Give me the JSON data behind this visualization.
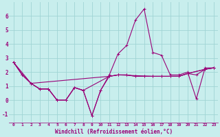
{
  "xlabel": "Windchill (Refroidissement éolien,°C)",
  "background_color": "#c8eeed",
  "grid_color": "#a0d4d4",
  "line_color": "#990077",
  "xlim": [
    -0.5,
    23.5
  ],
  "ylim": [
    -1.6,
    7.0
  ],
  "yticks": [
    -1,
    0,
    1,
    2,
    3,
    4,
    5,
    6
  ],
  "xticks": [
    0,
    1,
    2,
    3,
    4,
    5,
    6,
    7,
    8,
    9,
    10,
    11,
    12,
    13,
    14,
    15,
    16,
    17,
    18,
    19,
    20,
    21,
    22,
    23
  ],
  "series": [
    {
      "x": [
        0,
        1,
        2,
        3,
        4,
        5,
        6,
        7,
        8,
        9,
        10,
        11,
        12,
        13,
        14,
        15,
        16,
        17,
        18,
        19,
        20,
        21,
        22,
        23
      ],
      "y": [
        2.7,
        1.8,
        1.2,
        0.8,
        0.8,
        0.0,
        0.0,
        0.9,
        0.7,
        -1.1,
        0.7,
        1.8,
        3.3,
        3.9,
        5.7,
        6.5,
        3.4,
        3.2,
        1.8,
        1.8,
        2.0,
        0.1,
        2.3,
        2.3
      ]
    },
    {
      "x": [
        0,
        1,
        2,
        3,
        4,
        5,
        6,
        7,
        8,
        9,
        10,
        11,
        12,
        13,
        14,
        15,
        16,
        17,
        18,
        19,
        20,
        22,
        23
      ],
      "y": [
        2.7,
        1.8,
        1.2,
        0.8,
        0.8,
        0.0,
        0.0,
        0.9,
        0.7,
        -1.1,
        0.7,
        1.7,
        1.8,
        1.8,
        1.7,
        1.7,
        1.7,
        1.7,
        1.7,
        1.7,
        1.9,
        2.2,
        2.3
      ]
    },
    {
      "x": [
        0,
        1,
        2,
        3,
        4,
        5,
        6,
        7,
        8,
        11,
        12,
        16,
        17,
        18,
        19,
        20,
        22,
        23
      ],
      "y": [
        2.7,
        1.8,
        1.2,
        0.8,
        0.8,
        0.0,
        0.0,
        0.9,
        0.7,
        1.7,
        1.8,
        1.7,
        1.7,
        1.7,
        1.7,
        1.9,
        2.2,
        2.3
      ]
    },
    {
      "x": [
        0,
        2,
        11,
        12,
        13,
        14,
        15,
        16,
        17,
        18,
        19,
        20,
        21,
        22,
        23
      ],
      "y": [
        2.7,
        1.2,
        1.7,
        1.8,
        1.8,
        1.7,
        1.7,
        1.7,
        1.7,
        1.7,
        1.7,
        1.9,
        1.8,
        2.2,
        2.3
      ]
    }
  ]
}
